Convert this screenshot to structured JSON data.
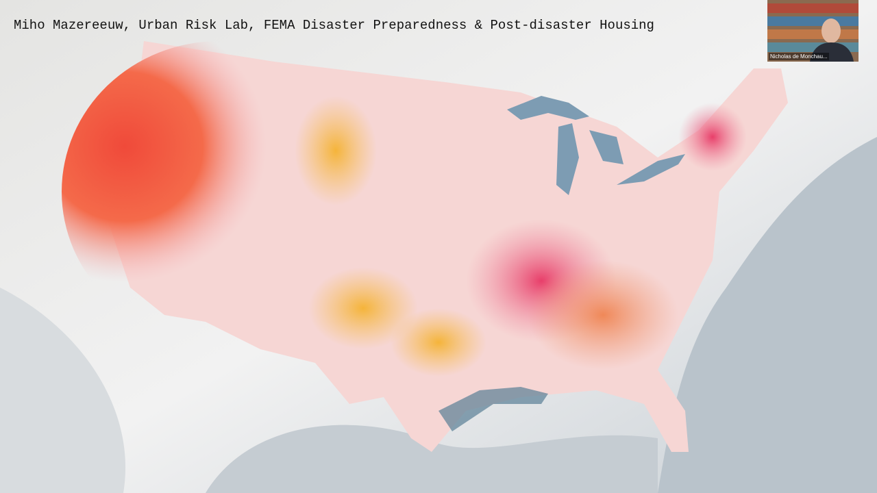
{
  "slide": {
    "title": "Miho Mazereeuw, Urban Risk Lab, FEMA Disaster Preparedness & Post-disaster Housing"
  },
  "participant": {
    "name": "Nicholas de Monchau..."
  }
}
